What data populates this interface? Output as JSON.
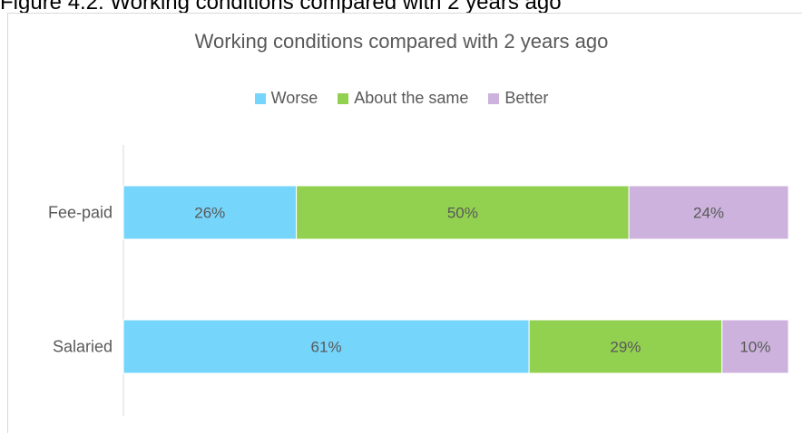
{
  "figure_caption": "Figure 4.2: Working conditions compared with 2 years ago",
  "chart_data": {
    "type": "bar",
    "orientation": "horizontal",
    "stacked": true,
    "percent_stacked": true,
    "title": "Working conditions compared with 2 years ago",
    "categories": [
      "Fee-paid",
      "Salaried"
    ],
    "series": [
      {
        "name": "Worse",
        "values": [
          26,
          61
        ],
        "labels": [
          "26%",
          "61%"
        ],
        "color": "#75d5fb"
      },
      {
        "name": "About the same",
        "values": [
          50,
          29
        ],
        "labels": [
          "50%",
          "29%"
        ],
        "color": "#92d050"
      },
      {
        "name": "Better",
        "values": [
          24,
          10
        ],
        "labels": [
          "24%",
          "10%"
        ],
        "color": "#ccb2dc"
      }
    ],
    "xlim": [
      0,
      100
    ],
    "grid": false,
    "legend_position": "top"
  }
}
